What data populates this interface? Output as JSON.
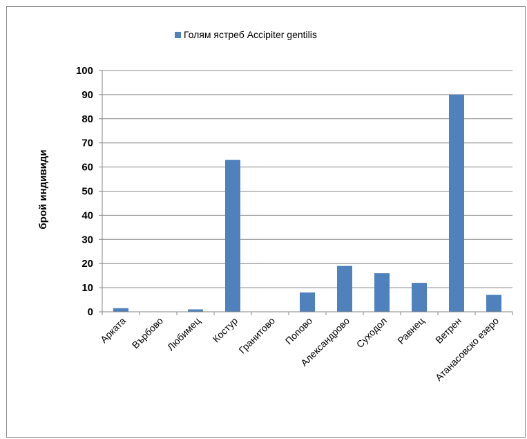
{
  "chart_data": {
    "type": "bar",
    "categories": [
      "Арката",
      "Върбово",
      "Любимец",
      "Костур",
      "Гранитово",
      "Попово",
      "Александрово",
      "Суходол",
      "Равнец",
      "Ветрен",
      "Атанасовско езеро"
    ],
    "series": [
      {
        "name": "Голям ястреб Accipiter gentilis",
        "values": [
          1.5,
          0,
          1,
          63,
          0,
          8,
          19,
          16,
          12,
          90,
          7
        ],
        "color": "#4f81bd"
      }
    ],
    "ylabel": "брой индивиди",
    "ylim": [
      0,
      100
    ],
    "yticks": [
      0,
      10,
      20,
      30,
      40,
      50,
      60,
      70,
      80,
      90,
      100
    ],
    "grid": true,
    "legend_position": "top"
  }
}
